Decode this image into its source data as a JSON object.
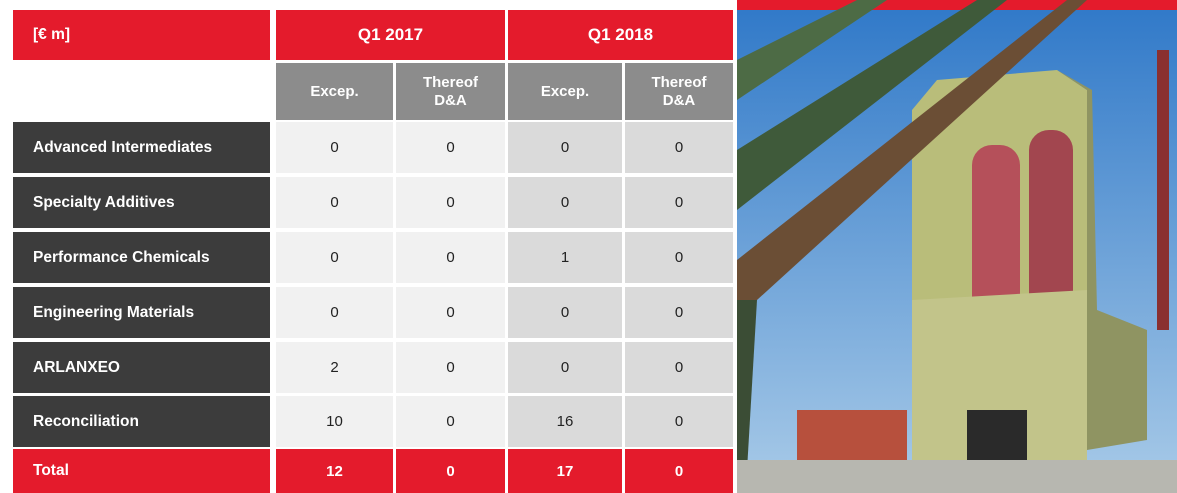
{
  "header": {
    "unit": "[€ m]",
    "periods": [
      "Q1 2017",
      "Q1 2018"
    ],
    "subcolumns": [
      "Excep.",
      "Thereof D&A",
      "Excep.",
      "Thereof D&A"
    ]
  },
  "table": {
    "rows": [
      {
        "label": "Advanced Intermediates",
        "values": [
          0,
          0,
          0,
          0
        ]
      },
      {
        "label": "Specialty Additives",
        "values": [
          0,
          0,
          0,
          0
        ]
      },
      {
        "label": "Performance Chemicals",
        "values": [
          0,
          0,
          1,
          0
        ]
      },
      {
        "label": "Engineering Materials",
        "values": [
          0,
          0,
          0,
          0
        ]
      },
      {
        "label": "ARLANXEO",
        "values": [
          2,
          0,
          0,
          0
        ]
      },
      {
        "label": "Reconciliation",
        "values": [
          10,
          0,
          16,
          0
        ]
      }
    ],
    "total": {
      "label": "Total",
      "values": [
        12,
        0,
        17,
        0
      ]
    }
  }
}
